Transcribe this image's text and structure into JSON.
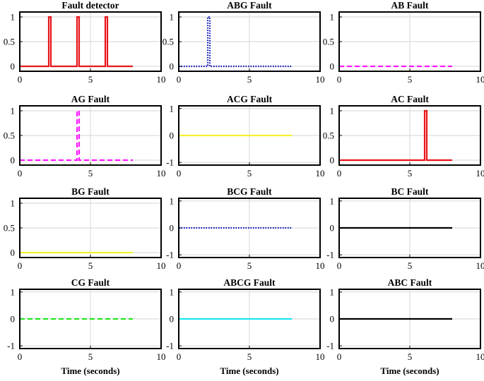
{
  "figure": {
    "rows": 4,
    "cols": 3,
    "xlabel": "Time (seconds)"
  },
  "colors": {
    "red": "#e8161b",
    "blue": "#0a13b3",
    "magenta": "#ff17ff",
    "yellow": "#f2f230",
    "black": "#000000",
    "green": "#22e61d",
    "cyan": "#19e6f5"
  },
  "chart_data": [
    {
      "type": "line",
      "title": "Fault detector",
      "xlim": [
        0,
        10
      ],
      "ylim": [
        -0.1,
        1.1
      ],
      "xticks": [
        0,
        5,
        10
      ],
      "yticks": [
        0,
        0.5,
        1
      ],
      "ytick_labels": [
        "0",
        "0.5",
        "1"
      ],
      "grid": true,
      "xlabel": "",
      "series": [
        {
          "name": "Fault detector",
          "color": "#e8161b",
          "style": "solid",
          "x": [
            0,
            2.05,
            2.05,
            2.2,
            2.2,
            4.05,
            4.05,
            4.2,
            4.2,
            6.05,
            6.05,
            6.2,
            6.2,
            8
          ],
          "y": [
            0,
            0,
            1,
            1,
            0,
            0,
            1,
            1,
            0,
            0,
            1,
            1,
            0,
            0
          ]
        }
      ]
    },
    {
      "type": "line",
      "title": "ABG Fault",
      "xlim": [
        0,
        10
      ],
      "ylim": [
        -0.1,
        1.1
      ],
      "xticks": [
        0,
        5,
        10
      ],
      "yticks": [
        0,
        0.5,
        1
      ],
      "ytick_labels": [
        "0",
        "0.5",
        "1"
      ],
      "grid": true,
      "xlabel": "",
      "series": [
        {
          "name": "ABG",
          "color": "#0a13b3",
          "style": "dotted",
          "x": [
            0,
            2.05,
            2.05,
            2.2,
            2.2,
            8
          ],
          "y": [
            0,
            0,
            1,
            1,
            0,
            0
          ]
        }
      ]
    },
    {
      "type": "line",
      "title": "AB Fault",
      "xlim": [
        0,
        10
      ],
      "ylim": [
        -0.1,
        1.1
      ],
      "xticks": [
        0,
        5,
        10
      ],
      "yticks": [
        0,
        0.5,
        1
      ],
      "ytick_labels": [
        "0",
        "0.5",
        "1"
      ],
      "grid": true,
      "xlabel": "",
      "series": [
        {
          "name": "AB",
          "color": "#ff17ff",
          "style": "dashed",
          "x": [
            0,
            8
          ],
          "y": [
            0,
            0
          ]
        }
      ]
    },
    {
      "type": "line",
      "title": "AG Fault",
      "xlim": [
        0,
        10
      ],
      "ylim": [
        -0.1,
        1.1
      ],
      "xticks": [
        0,
        5,
        10
      ],
      "yticks": [
        0,
        0.5,
        1
      ],
      "ytick_labels": [
        "0",
        "0.5",
        "1"
      ],
      "grid": true,
      "xlabel": "",
      "series": [
        {
          "name": "AG",
          "color": "#ff17ff",
          "style": "dashed",
          "x": [
            0,
            4.05,
            4.05,
            4.2,
            4.2,
            8
          ],
          "y": [
            0,
            0,
            1,
            1,
            0,
            0
          ]
        }
      ]
    },
    {
      "type": "line",
      "title": "ACG Fault",
      "xlim": [
        0,
        10
      ],
      "ylim": [
        -1.1,
        1.1
      ],
      "xticks": [
        0,
        5,
        10
      ],
      "yticks": [
        -1,
        0,
        1
      ],
      "ytick_labels": [
        "-1",
        "0",
        "1"
      ],
      "grid": true,
      "xlabel": "",
      "series": [
        {
          "name": "ACG",
          "color": "#f2f230",
          "style": "solid",
          "x": [
            0,
            8
          ],
          "y": [
            0,
            0
          ]
        }
      ]
    },
    {
      "type": "line",
      "title": "AC Fault",
      "xlim": [
        0,
        10
      ],
      "ylim": [
        -0.1,
        1.1
      ],
      "xticks": [
        0,
        5,
        10
      ],
      "yticks": [
        0,
        0.5,
        1
      ],
      "ytick_labels": [
        "0",
        "0.5",
        "1"
      ],
      "grid": true,
      "xlabel": "",
      "series": [
        {
          "name": "AC",
          "color": "#e8161b",
          "style": "solid",
          "x": [
            0,
            6.05,
            6.05,
            6.2,
            6.2,
            8
          ],
          "y": [
            0,
            0,
            1,
            1,
            0,
            0
          ]
        }
      ]
    },
    {
      "type": "line",
      "title": "BG Fault",
      "xlim": [
        0,
        10
      ],
      "ylim": [
        -0.1,
        1.1
      ],
      "xticks": [
        0,
        5,
        10
      ],
      "yticks": [
        0,
        0.5,
        1
      ],
      "ytick_labels": [
        "0",
        "0.5",
        "1"
      ],
      "grid": true,
      "xlabel": "",
      "series": [
        {
          "name": "BG",
          "color": "#f2f230",
          "style": "solid",
          "x": [
            0,
            8
          ],
          "y": [
            0,
            0
          ]
        }
      ]
    },
    {
      "type": "line",
      "title": "BCG Fault",
      "xlim": [
        0,
        10
      ],
      "ylim": [
        -1.1,
        1.1
      ],
      "xticks": [
        0,
        5,
        10
      ],
      "yticks": [
        -1,
        0,
        1
      ],
      "ytick_labels": [
        "-1",
        "0",
        "1"
      ],
      "grid": true,
      "xlabel": "",
      "series": [
        {
          "name": "BCG",
          "color": "#0a13b3",
          "style": "dotted",
          "x": [
            0,
            8
          ],
          "y": [
            0,
            0
          ]
        }
      ]
    },
    {
      "type": "line",
      "title": "BC Fault",
      "xlim": [
        0,
        10
      ],
      "ylim": [
        -1.1,
        1.1
      ],
      "xticks": [
        0,
        5,
        10
      ],
      "yticks": [
        -1,
        0,
        1
      ],
      "ytick_labels": [
        "-1",
        "0",
        "1"
      ],
      "grid": true,
      "xlabel": "",
      "series": [
        {
          "name": "BC",
          "color": "#000000",
          "style": "solid",
          "x": [
            0,
            8
          ],
          "y": [
            0,
            0
          ]
        }
      ]
    },
    {
      "type": "line",
      "title": "CG Fault",
      "xlim": [
        0,
        10
      ],
      "ylim": [
        -1.1,
        1.1
      ],
      "xticks": [
        0,
        5,
        10
      ],
      "yticks": [
        -1,
        0,
        1
      ],
      "ytick_labels": [
        "-1",
        "0",
        "1"
      ],
      "grid": true,
      "xlabel": "Time (seconds)",
      "series": [
        {
          "name": "CG",
          "color": "#22e61d",
          "style": "dashed",
          "x": [
            0,
            8
          ],
          "y": [
            0,
            0
          ]
        }
      ]
    },
    {
      "type": "line",
      "title": "ABCG Fault",
      "xlim": [
        0,
        10
      ],
      "ylim": [
        -1.1,
        1.1
      ],
      "xticks": [
        0,
        5,
        10
      ],
      "yticks": [
        -1,
        0,
        1
      ],
      "ytick_labels": [
        "-1",
        "0",
        "1"
      ],
      "grid": true,
      "xlabel": "Time (seconds)",
      "series": [
        {
          "name": "ABCG",
          "color": "#19e6f5",
          "style": "solid",
          "x": [
            0,
            8
          ],
          "y": [
            0,
            0
          ]
        }
      ]
    },
    {
      "type": "line",
      "title": "ABC Fault",
      "xlim": [
        0,
        10
      ],
      "ylim": [
        -1.1,
        1.1
      ],
      "xticks": [
        0,
        5,
        10
      ],
      "yticks": [
        -1,
        0,
        1
      ],
      "ytick_labels": [
        "-1",
        "0",
        "1"
      ],
      "grid": true,
      "xlabel": "Time (seconds)",
      "series": [
        {
          "name": "ABC",
          "color": "#000000",
          "style": "solid",
          "x": [
            0,
            8
          ],
          "y": [
            0,
            0
          ]
        }
      ]
    }
  ]
}
